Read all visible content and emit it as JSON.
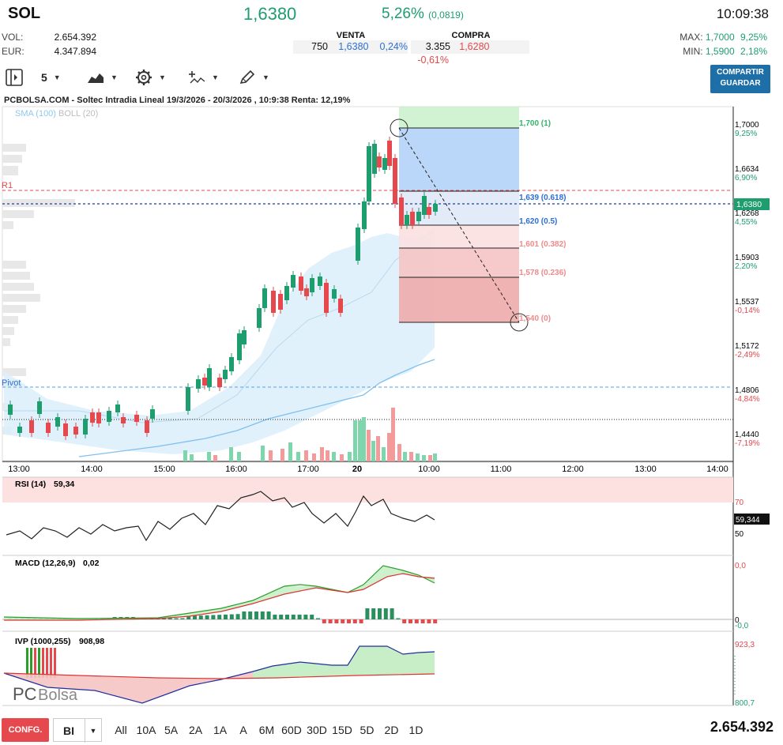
{
  "header": {
    "symbol": "SOL",
    "last": "1,6380",
    "change_pct": "5,26%",
    "change_abs": "(0,0819)",
    "time": "10:09:38"
  },
  "stats_left": [
    {
      "label": "VOL:",
      "value": "2.654.392"
    },
    {
      "label": "EUR:",
      "value": "4.347.894"
    }
  ],
  "orderbook": {
    "sell": {
      "title": "VENTA",
      "qty": "750",
      "price": "1,6380",
      "pct": "0,24%"
    },
    "buy": {
      "title": "COMPRA",
      "qty": "3.355",
      "price": "1,6280",
      "pct": "-0,61%"
    }
  },
  "stats_right": [
    {
      "label": "MAX:",
      "value": "1,7000",
      "pct": "9,25%"
    },
    {
      "label": "MIN:",
      "value": "1,5900",
      "pct": "2,18%"
    }
  ],
  "toolbar": {
    "interval": "5",
    "share_line1": "COMPARTIR",
    "share_line2": "GUARDAR"
  },
  "chart": {
    "title": "PCBOLSA.COM - Soltec Intradia Lineal 19/3/2026 - 20/3/2026 , 10:9:38 Renta: 12,19%",
    "indicator_sma": "SMA (100)",
    "indicator_boll": "BOLL (20)",
    "level_r1": "R1",
    "level_pivot": "Pivot",
    "price_axis": [
      {
        "price": "1,7000",
        "pct": "9,25%",
        "color": "#1e9e6e"
      },
      {
        "price": "1,6634",
        "pct": "6,90%",
        "color": "#1e9e6e"
      },
      {
        "price": "1,6268",
        "pct": "4,55%",
        "color": "#1e9e6e"
      },
      {
        "price": "1,5903",
        "pct": "2,20%",
        "color": "#1e9e6e"
      },
      {
        "price": "1,5537",
        "pct": "-0,14%",
        "color": "#e5484d"
      },
      {
        "price": "1,5172",
        "pct": "-2,49%",
        "color": "#e5484d"
      },
      {
        "price": "1,4806",
        "pct": "-4,84%",
        "color": "#e5484d"
      },
      {
        "price": "1,4440",
        "pct": "-7,19%",
        "color": "#e5484d"
      }
    ],
    "last_tag": "1,6380",
    "time_axis": [
      "13:00",
      "14:00",
      "15:00",
      "16:00",
      "17:00",
      "20",
      "10:00",
      "11:00",
      "12:00",
      "13:00",
      "14:00"
    ],
    "fib_levels": [
      {
        "label": "1,700 (1)",
        "color": "#35b56a"
      },
      {
        "label": "1,639 (0.618)",
        "color": "#2b6fd6"
      },
      {
        "label": "1,620 (0.5)",
        "color": "#2b6fd6"
      },
      {
        "label": "1,601 (0.382)",
        "color": "#f08a8a"
      },
      {
        "label": "1,578 (0.236)",
        "color": "#f08a8a"
      },
      {
        "label": "1,540 (0)",
        "color": "#f08a8a"
      }
    ]
  },
  "rsi": {
    "label": "RSI (14)",
    "value": "59,34",
    "level_high": "70",
    "level_low": "50",
    "tag": "59,344"
  },
  "macd": {
    "label": "MACD (12,26,9)",
    "value": "0,02",
    "top": "0,0",
    "zero": "0",
    "bottom": "-0,0"
  },
  "ivp": {
    "label": "IVP (1000,255)",
    "value": "908,98",
    "top": "923,3",
    "bottom": "800,7"
  },
  "watermark": {
    "pc": "PC",
    "bolsa": "Bolsa"
  },
  "bottombar": {
    "config": "CONFG.",
    "bi": "BI",
    "ranges": [
      "All",
      "10A",
      "5A",
      "2A",
      "1A",
      "A",
      "6M",
      "60D",
      "30D",
      "15D",
      "5D",
      "2D",
      "1D"
    ],
    "total": "2.654.392"
  },
  "colors": {
    "up": "#1e9e6e",
    "down": "#e5484d",
    "accent": "#1e6fa8"
  }
}
